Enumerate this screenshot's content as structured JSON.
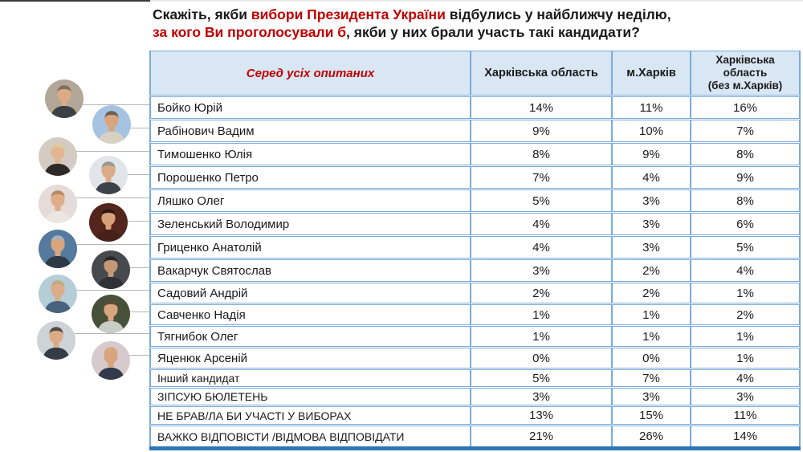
{
  "title": {
    "line1": [
      {
        "text": "Скажіть, якби ",
        "color": "black"
      },
      {
        "text": "вибори Президента України",
        "color": "red"
      },
      {
        "text": " відбулись у найближчу неділю,",
        "color": "black"
      }
    ],
    "line2": [
      {
        "text": "за кого Ви проголосували б",
        "color": "red"
      },
      {
        "text": ", якби у них брали участь такі кандидати?",
        "color": "black"
      }
    ]
  },
  "table": {
    "header": [
      "Серед усіх опитаних",
      "Харківська область",
      "м.Харків",
      "Харківська\nобласть\n(без м.Харків)"
    ],
    "rows": [
      {
        "label": "Бойко Юрій",
        "values": [
          "14%",
          "11%",
          "16%"
        ]
      },
      {
        "label": "Рабінович Вадим",
        "values": [
          "9%",
          "10%",
          "7%"
        ]
      },
      {
        "label": "Тимошенко Юлія",
        "values": [
          "8%",
          "9%",
          "8%"
        ]
      },
      {
        "label": "Порошенко Петро",
        "values": [
          "7%",
          "4%",
          "9%"
        ]
      },
      {
        "label": "Ляшко Олег",
        "values": [
          "5%",
          "3%",
          "8%"
        ]
      },
      {
        "label": "Зеленський Володимир",
        "values": [
          "4%",
          "3%",
          "6%"
        ]
      },
      {
        "label": "Гриценко Анатолій",
        "values": [
          "4%",
          "3%",
          "5%"
        ]
      },
      {
        "label": "Вакарчук Святослав",
        "values": [
          "3%",
          "2%",
          "4%"
        ]
      },
      {
        "label": "Садовий Андрій",
        "values": [
          "2%",
          "2%",
          "1%"
        ]
      },
      {
        "label": "Савченко Надія",
        "values": [
          "1%",
          "1%",
          "2%"
        ]
      },
      {
        "label": "Тягнибок Олег",
        "values": [
          "1%",
          "1%",
          "1%"
        ]
      },
      {
        "label": "Яценюк Арсеній",
        "values": [
          "0%",
          "0%",
          "1%"
        ]
      },
      {
        "label": "Інший кандидат",
        "values": [
          "5%",
          "7%",
          "4%"
        ]
      },
      {
        "label": "ЗІПСУЮ БЮЛЕТЕНЬ",
        "values": [
          "3%",
          "3%",
          "3%"
        ]
      },
      {
        "label": "НЕ БРАВ/ЛА БИ УЧАСТІ У ВИБОРАХ",
        "values": [
          "13%",
          "15%",
          "11%"
        ]
      },
      {
        "label": "ВАЖКО ВІДПОВІСТИ /ВІДМОВА ВІДПОВІДАТИ",
        "values": [
          "21%",
          "26%",
          "14%"
        ]
      }
    ]
  },
  "avatars": [
    {
      "candidate": "Бойко Юрій",
      "id": "boyko",
      "bg": "#b2a698",
      "hair": "#7d6f5c",
      "skin": "#dcaa85",
      "suit": "#3b4046"
    },
    {
      "candidate": "Рабінович Вадим",
      "id": "rabinovych",
      "bg": "#a6c4e2",
      "hair": "#6e5f52",
      "skin": "#d9a57f",
      "suit": "#d8d1c2"
    },
    {
      "candidate": "Тимошенко Юлія",
      "id": "tymoshenko",
      "bg": "#d4ccc2",
      "hair": "#dfcba1",
      "skin": "#e3b691",
      "suit": "#2e2a28"
    },
    {
      "candidate": "Порошенко Петро",
      "id": "poroshenko",
      "bg": "#e1e5e9",
      "hair": "#97968f",
      "skin": "#dcab87",
      "suit": "#3d4249"
    },
    {
      "candidate": "Ляшко Олег",
      "id": "lyashko",
      "bg": "#e5dbd8",
      "hair": "#b68c5e",
      "skin": "#e0ad89",
      "suit": "#ece6e3"
    },
    {
      "candidate": "Зеленський Володимир",
      "id": "zelenskyi",
      "bg": "#54251d",
      "hair": "#271a13",
      "skin": "#d7a078",
      "suit": "#46201a"
    },
    {
      "candidate": "Гриценко Анатолій",
      "id": "hrytsenko",
      "bg": "#567a9e",
      "hair": "#a9b1b7",
      "skin": "#d9a57f",
      "suit": "#2e3946"
    },
    {
      "candidate": "Вакарчук Святослав",
      "id": "vakarchuk",
      "bg": "#46494d",
      "hair": "#27292b",
      "skin": "#c79875",
      "suit": "#2e3236"
    },
    {
      "candidate": "Садовий Андрій",
      "id": "sadovyi",
      "bg": "#b5cdd7",
      "hair": "#c2a97e",
      "skin": "#dcab87",
      "suit": "#48627d"
    },
    {
      "candidate": "Савченко Надія",
      "id": "savchenko",
      "bg": "#475139",
      "hair": "#5e4b39",
      "skin": "#d9a57f",
      "suit": "#c8cec5"
    },
    {
      "candidate": "Тягнибок Олег",
      "id": "tyahnybok",
      "bg": "#ced3d8",
      "hair": "#514c46",
      "skin": "#dcab87",
      "suit": "#343c47"
    },
    {
      "candidate": "Яценюк Арсеній",
      "id": "yatsenyuk",
      "bg": "#d6cacd",
      "hair": "#d9a57f",
      "skin": "#d9a57f",
      "suit": "#323a4b"
    }
  ],
  "colors": {
    "accent_red": "#c00000",
    "text_black": "#1a1a1a",
    "table_border_blue": "#7aabda",
    "header_bg_blue": "#d9e7f4",
    "bottom_bar_blue": "#2e75b6",
    "connector_gray": "#b5b5b5"
  },
  "chart_data": {
    "type": "table",
    "title": "Скажіть, якби вибори Президента України відбулись у найближчу неділю, за кого Ви проголосували б, якби у них брали участь такі кандидати?",
    "subtitle": "Серед усіх опитаних",
    "columns": [
      "Харківська область",
      "м.Харків",
      "Харківська область (без м.Харків)"
    ],
    "categories": [
      "Бойко Юрій",
      "Рабінович Вадим",
      "Тимошенко Юлія",
      "Порошенко Петро",
      "Ляшко Олег",
      "Зеленський Володимир",
      "Гриценко Анатолій",
      "Вакарчук Святослав",
      "Садовий Андрій",
      "Савченко Надія",
      "Тягнибок Олег",
      "Яценюк Арсеній",
      "Інший кандидат",
      "ЗІПСУЮ БЮЛЕТЕНЬ",
      "НЕ БРАВ/ЛА БИ УЧАСТІ У ВИБОРАХ",
      "ВАЖКО ВІДПОВІСТИ /ВІДМОВА ВІДПОВІДАТИ"
    ],
    "series": [
      {
        "name": "Харківська область",
        "values": [
          14,
          9,
          8,
          7,
          5,
          4,
          4,
          3,
          2,
          1,
          1,
          0,
          5,
          3,
          13,
          21
        ]
      },
      {
        "name": "м.Харків",
        "values": [
          11,
          10,
          9,
          4,
          3,
          3,
          3,
          2,
          2,
          1,
          1,
          0,
          7,
          3,
          15,
          26
        ]
      },
      {
        "name": "Харківська область (без м.Харків)",
        "values": [
          16,
          7,
          8,
          9,
          8,
          6,
          5,
          4,
          1,
          2,
          1,
          1,
          4,
          3,
          11,
          14
        ]
      }
    ],
    "unit": "%"
  }
}
